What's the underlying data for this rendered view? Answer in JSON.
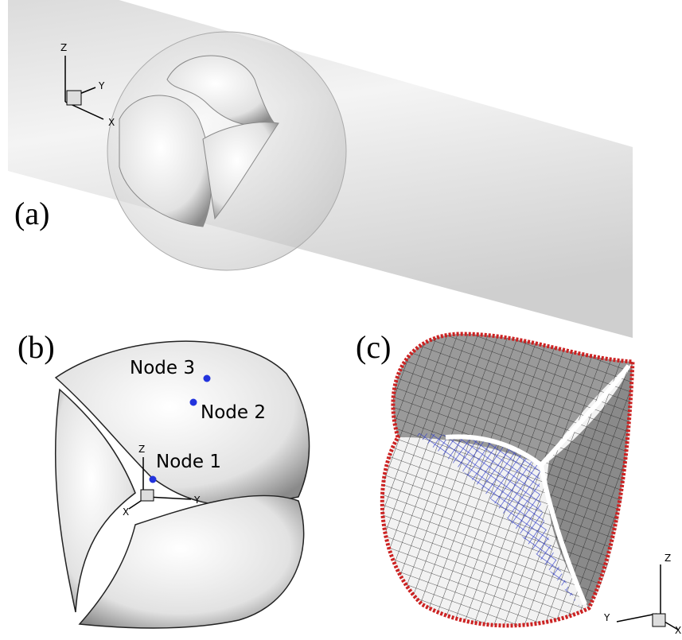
{
  "panels": [
    {
      "label": "(a)",
      "axes": {
        "z": "Z",
        "y": "Y",
        "x": "X"
      }
    },
    {
      "label": "(b)",
      "nodes": [
        "Node 3",
        "Node 2",
        "Node 1"
      ],
      "axes": {
        "z": "Z",
        "y": "Y",
        "x": "X"
      }
    },
    {
      "label": "(c)",
      "axes": {
        "z": "Z",
        "y": "Y",
        "x": "X"
      }
    }
  ]
}
